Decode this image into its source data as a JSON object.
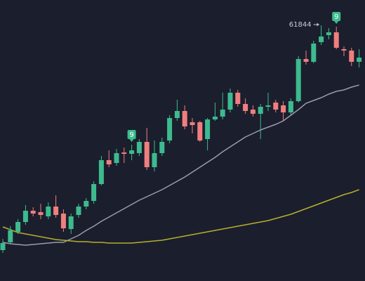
{
  "chart_data": {
    "type": "candlestick",
    "ylim": [
      58204,
      62204
    ],
    "up_color": "#3dbb8e",
    "down_color": "#ef7f7f",
    "background": "#1b1e2d",
    "open": [
      58644,
      58754,
      58904,
      59044,
      59204,
      59184,
      59124,
      59264,
      59164,
      58944,
      59144,
      59264,
      59344,
      59584,
      59924,
      59884,
      60034,
      60014,
      60024,
      60184,
      59824,
      60024,
      60204,
      60524,
      60624,
      60464,
      60464,
      60224,
      60504,
      60544,
      60644,
      60884,
      60724,
      60644,
      60584,
      60684,
      60744,
      60704,
      60604,
      60764,
      61364,
      61324,
      61604,
      61704,
      61744,
      61504,
      61484,
      61324
    ],
    "high": [
      58804,
      58984,
      59084,
      59284,
      59254,
      59304,
      59324,
      59424,
      59224,
      59164,
      59304,
      59384,
      59624,
      59984,
      60064,
      60084,
      60104,
      60144,
      60224,
      60384,
      60204,
      60244,
      60564,
      60784,
      60704,
      60524,
      60484,
      60524,
      60744,
      60884,
      60944,
      60924,
      60804,
      60704,
      60724,
      60884,
      60784,
      60764,
      60804,
      61404,
      61484,
      61624,
      61844,
      61804,
      61824,
      61544,
      61524,
      61504
    ],
    "low": [
      58604,
      58724,
      58874,
      59004,
      59124,
      59084,
      59084,
      59104,
      58904,
      58874,
      59104,
      59224,
      59304,
      59564,
      59824,
      59844,
      59884,
      59924,
      59984,
      59784,
      59764,
      59984,
      60164,
      60484,
      60364,
      60304,
      60184,
      60064,
      60484,
      60504,
      60604,
      60684,
      60584,
      60544,
      60224,
      60624,
      60604,
      60484,
      60564,
      60744,
      61284,
      61304,
      61564,
      61644,
      61504,
      61404,
      61264,
      61244
    ],
    "close": [
      58744,
      58924,
      59044,
      59204,
      59164,
      59144,
      59264,
      59144,
      58954,
      59124,
      59264,
      59344,
      59584,
      59924,
      59864,
      60024,
      60014,
      60064,
      60184,
      59824,
      60024,
      60184,
      60524,
      60624,
      60404,
      60424,
      60204,
      60504,
      60544,
      60644,
      60884,
      60724,
      60624,
      60584,
      60684,
      60704,
      60644,
      60604,
      60764,
      61364,
      61324,
      61584,
      61684,
      61744,
      61524,
      61484,
      61324,
      61384
    ],
    "series": [
      {
        "color": "#9a9cae",
        "values": [
          58754,
          58734,
          58724,
          58714,
          58724,
          58734,
          58744,
          58754,
          58754,
          58804,
          58854,
          58924,
          58984,
          59054,
          59114,
          59174,
          59234,
          59294,
          59354,
          59404,
          59454,
          59504,
          59564,
          59624,
          59684,
          59754,
          59824,
          59894,
          59964,
          60044,
          60114,
          60184,
          60254,
          60304,
          60354,
          60394,
          60434,
          60484,
          60564,
          60644,
          60734,
          60774,
          60814,
          60864,
          60904,
          60924,
          60964,
          60994
        ]
      },
      {
        "color": "#b6b02c",
        "values": [
          58974,
          58934,
          58894,
          58874,
          58854,
          58834,
          58814,
          58794,
          58784,
          58774,
          58764,
          58764,
          58754,
          58754,
          58744,
          58744,
          58744,
          58744,
          58754,
          58764,
          58774,
          58784,
          58804,
          58824,
          58844,
          58864,
          58884,
          58904,
          58924,
          58944,
          58964,
          58984,
          59004,
          59024,
          59044,
          59064,
          59094,
          59124,
          59154,
          59194,
          59234,
          59274,
          59314,
          59354,
          59394,
          59434,
          59464,
          59504
        ]
      }
    ],
    "signals": [
      {
        "index": 17,
        "label": "9"
      },
      {
        "index": 44,
        "label": "9"
      }
    ]
  }
}
